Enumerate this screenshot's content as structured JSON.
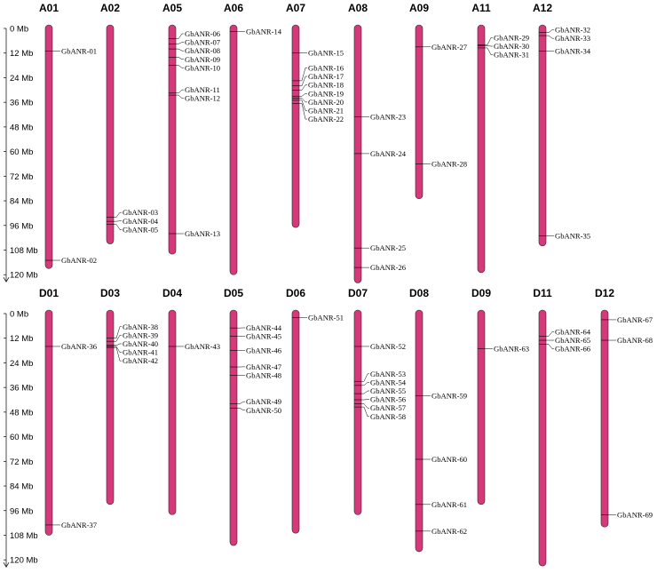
{
  "scale": {
    "unit": "Mb",
    "max": 120,
    "tick_step": 12,
    "panel1_ticks": [
      "0 Mb",
      "12 Mb",
      "24 Mb",
      "36 Mb",
      "48 Mb",
      "60 Mb",
      "72 Mb",
      "84 Mb",
      "96 Mb",
      "108 Mb",
      "120 Mb"
    ],
    "panel2_ticks": [
      "0 Mb",
      "12 Mb",
      "24 Mb",
      "36 Mb",
      "48 Mb",
      "60 Mb",
      "72 Mb",
      "84 Mb",
      "96 Mb",
      "108 Mb",
      "120 Mb"
    ]
  },
  "colors": {
    "chromosome": "#d6397a",
    "outline": "#2a2a2a",
    "text": "#000000"
  },
  "panels": [
    {
      "id": "A",
      "chromosomes": [
        {
          "name": "A01",
          "length": 117,
          "genes": [
            {
              "id": "GbANR-01",
              "pos": 11
            },
            {
              "id": "GbANR-02",
              "pos": 113
            }
          ]
        },
        {
          "name": "A02",
          "length": 105,
          "genes": [
            {
              "id": "GbANR-03",
              "pos": 92
            },
            {
              "id": "GbANR-04",
              "pos": 94
            },
            {
              "id": "GbANR-05",
              "pos": 95.5
            }
          ]
        },
        {
          "name": "A05",
          "length": 110,
          "genes": [
            {
              "id": "GbANR-06",
              "pos": 5
            },
            {
              "id": "GbANR-07",
              "pos": 7.5
            },
            {
              "id": "GbANR-08",
              "pos": 10
            },
            {
              "id": "GbANR-09",
              "pos": 14
            },
            {
              "id": "GbANR-10",
              "pos": 18
            },
            {
              "id": "GbANR-11",
              "pos": 31.5
            },
            {
              "id": "GbANR-12",
              "pos": 32.5
            },
            {
              "id": "GbANR-13",
              "pos": 100
            }
          ]
        },
        {
          "name": "A06",
          "length": 120,
          "genes": [
            {
              "id": "GbANR-14",
              "pos": 1.5
            }
          ]
        },
        {
          "name": "A07",
          "length": 97,
          "genes": [
            {
              "id": "GbANR-15",
              "pos": 12
            },
            {
              "id": "GbANR-16",
              "pos": 25.5
            },
            {
              "id": "GbANR-17",
              "pos": 28
            },
            {
              "id": "GbANR-18",
              "pos": 30
            },
            {
              "id": "GbANR-19",
              "pos": 33
            },
            {
              "id": "GbANR-20",
              "pos": 34
            },
            {
              "id": "GbANR-21",
              "pos": 35
            },
            {
              "id": "GbANR-22",
              "pos": 36.5
            }
          ]
        },
        {
          "name": "A08",
          "length": 124,
          "genes": [
            {
              "id": "GbANR-23",
              "pos": 43
            },
            {
              "id": "GbANR-24",
              "pos": 61
            },
            {
              "id": "GbANR-25",
              "pos": 107
            },
            {
              "id": "GbANR-26",
              "pos": 116.5
            }
          ]
        },
        {
          "name": "A09",
          "length": 83,
          "genes": [
            {
              "id": "GbANR-27",
              "pos": 9
            },
            {
              "id": "GbANR-28",
              "pos": 66
            }
          ]
        },
        {
          "name": "A11",
          "length": 119,
          "genes": [
            {
              "id": "GbANR-29",
              "pos": 8
            },
            {
              "id": "GbANR-30",
              "pos": 8.5
            },
            {
              "id": "GbANR-31",
              "pos": 9.5
            }
          ]
        },
        {
          "name": "A12",
          "length": 106,
          "genes": [
            {
              "id": "GbANR-32",
              "pos": 2
            },
            {
              "id": "GbANR-33",
              "pos": 3.5
            },
            {
              "id": "GbANR-34",
              "pos": 11
            },
            {
              "id": "GbANR-35",
              "pos": 101
            }
          ]
        }
      ]
    },
    {
      "id": "D",
      "chromosomes": [
        {
          "name": "D01",
          "length": 108,
          "genes": [
            {
              "id": "GbANR-36",
              "pos": 16
            },
            {
              "id": "GbANR-37",
              "pos": 103
            }
          ]
        },
        {
          "name": "D03",
          "length": 93,
          "genes": [
            {
              "id": "GbANR-38",
              "pos": 12
            },
            {
              "id": "GbANR-39",
              "pos": 13.5
            },
            {
              "id": "GbANR-40",
              "pos": 15.5
            },
            {
              "id": "GbANR-41",
              "pos": 16
            },
            {
              "id": "GbANR-42",
              "pos": 16.5
            }
          ]
        },
        {
          "name": "D04",
          "length": 98,
          "genes": [
            {
              "id": "GbANR-43",
              "pos": 16
            }
          ]
        },
        {
          "name": "D05",
          "length": 113,
          "genes": [
            {
              "id": "GbANR-44",
              "pos": 7
            },
            {
              "id": "GbANR-45",
              "pos": 11
            },
            {
              "id": "GbANR-46",
              "pos": 18
            },
            {
              "id": "GbANR-47",
              "pos": 26
            },
            {
              "id": "GbANR-48",
              "pos": 30
            },
            {
              "id": "GbANR-49",
              "pos": 44
            },
            {
              "id": "GbANR-50",
              "pos": 46
            }
          ]
        },
        {
          "name": "D06",
          "length": 107,
          "genes": [
            {
              "id": "GbANR-51",
              "pos": 2
            }
          ]
        },
        {
          "name": "D07",
          "length": 98,
          "genes": [
            {
              "id": "GbANR-52",
              "pos": 16
            },
            {
              "id": "GbANR-53",
              "pos": 33
            },
            {
              "id": "GbANR-54",
              "pos": 35
            },
            {
              "id": "GbANR-55",
              "pos": 39
            },
            {
              "id": "GbANR-56",
              "pos": 42
            },
            {
              "id": "GbANR-57",
              "pos": 44
            },
            {
              "id": "GbANR-58",
              "pos": 45.5
            }
          ]
        },
        {
          "name": "D08",
          "length": 116,
          "genes": [
            {
              "id": "GbANR-59",
              "pos": 40
            },
            {
              "id": "GbANR-60",
              "pos": 71
            },
            {
              "id": "GbANR-61",
              "pos": 93
            },
            {
              "id": "GbANR-62",
              "pos": 106
            }
          ]
        },
        {
          "name": "D09",
          "length": 93,
          "genes": [
            {
              "id": "GbANR-63",
              "pos": 17
            }
          ]
        },
        {
          "name": "D11",
          "length": 123,
          "genes": [
            {
              "id": "GbANR-64",
              "pos": 11
            },
            {
              "id": "GbANR-65",
              "pos": 13
            },
            {
              "id": "GbANR-66",
              "pos": 15
            }
          ]
        },
        {
          "name": "D12",
          "length": 104,
          "genes": [
            {
              "id": "GbANR-67",
              "pos": 3
            },
            {
              "id": "GbANR-68",
              "pos": 13
            },
            {
              "id": "GbANR-69",
              "pos": 98
            }
          ]
        }
      ]
    }
  ]
}
